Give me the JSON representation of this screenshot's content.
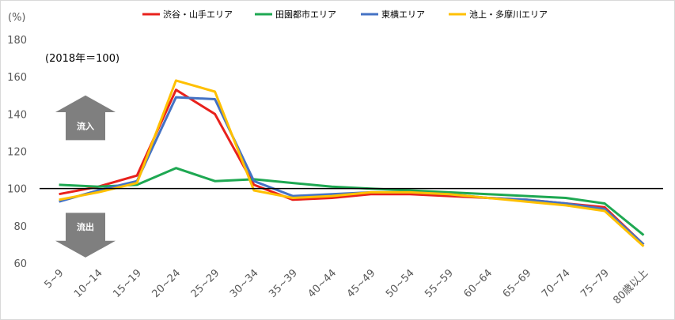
{
  "chart_data": {
    "type": "line",
    "ylabel": "(%)",
    "note": "(2018年＝100)",
    "ylim": [
      60,
      180
    ],
    "yticks": [
      60,
      80,
      100,
      120,
      140,
      160,
      180
    ],
    "reference_line": 100,
    "legend_position": "top",
    "grid": false,
    "categories": [
      "5~9",
      "10~14",
      "15~19",
      "20~24",
      "25~29",
      "30~34",
      "35~39",
      "40~44",
      "45~49",
      "50~54",
      "55~59",
      "60~64",
      "65~69",
      "70~74",
      "75~79",
      "80歳以上"
    ],
    "series": [
      {
        "name": "渋谷・山手エリア",
        "color": "#e8211c",
        "values": [
          97,
          101,
          107,
          153,
          140,
          102,
          94,
          95,
          97,
          97,
          96,
          95,
          94,
          92,
          90,
          70
        ]
      },
      {
        "name": "田園都市エリア",
        "color": "#1ea852",
        "values": [
          102,
          101,
          102,
          111,
          104,
          105,
          103,
          101,
          100,
          99,
          98,
          97,
          96,
          95,
          92,
          75
        ]
      },
      {
        "name": "東横エリア",
        "color": "#4472c4",
        "values": [
          93,
          99,
          104,
          149,
          148,
          104,
          96,
          97,
          98,
          98,
          97,
          95,
          94,
          92,
          89,
          70
        ]
      },
      {
        "name": "池上・多摩川エリア",
        "color": "#ffc000",
        "values": [
          94,
          98,
          103,
          158,
          152,
          99,
          95,
          96,
          98,
          98,
          97,
          95,
          93,
          91,
          88,
          69
        ]
      }
    ],
    "annotations": [
      {
        "label": "流入",
        "direction": "up"
      },
      {
        "label": "流出",
        "direction": "down"
      }
    ]
  }
}
